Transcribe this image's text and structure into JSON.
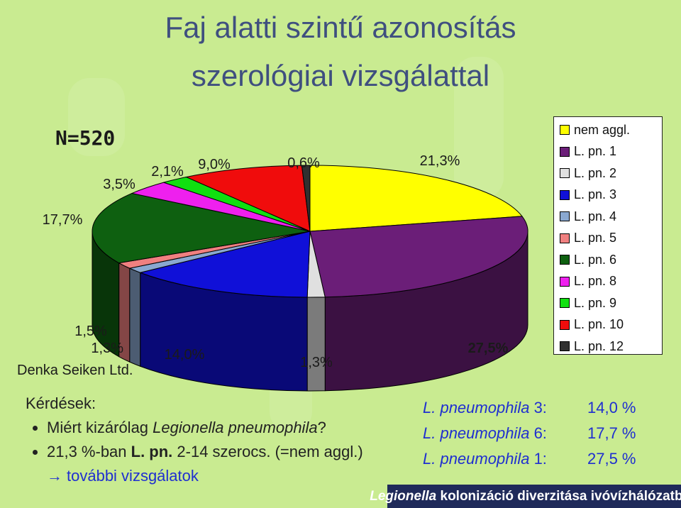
{
  "title_line1": "Faj alatti szintű azonosítás",
  "title_line2": "szerológiai vizsgálattal",
  "sample_size": "N=520",
  "chart_data": {
    "type": "pie",
    "title": "",
    "slices": [
      {
        "label": "nem aggl.",
        "value": 21.3,
        "value_label": "21,3%",
        "color": "#ffff00"
      },
      {
        "label": "L. pn. 1",
        "value": 27.5,
        "value_label": "27,5%",
        "color": "#6b1e78"
      },
      {
        "label": "L. pn. 2",
        "value": 1.3,
        "value_label": "1,3%",
        "color": "#e0e0e0"
      },
      {
        "label": "L. pn. 3",
        "value": 14.0,
        "value_label": "14,0%",
        "color": "#1010d8"
      },
      {
        "label": "L. pn. 4",
        "value": 1.3,
        "value_label": "1,3%",
        "color": "#8aa8d0"
      },
      {
        "label": "L. pn. 5",
        "value": 1.5,
        "value_label": "1,5%",
        "color": "#f08080"
      },
      {
        "label": "L. pn. 6",
        "value": 17.7,
        "value_label": "17,7%",
        "color": "#0e6010"
      },
      {
        "label": "L. pn. 8",
        "value": 3.5,
        "value_label": "3,5%",
        "color": "#ee20ee"
      },
      {
        "label": "L. pn. 9",
        "value": 2.1,
        "value_label": "2,1%",
        "color": "#10e010"
      },
      {
        "label": "L. pn. 10",
        "value": 9.0,
        "value_label": "9,0%",
        "color": "#f00c0c"
      },
      {
        "label": "L. pn. 12",
        "value": 0.6,
        "value_label": "0,6%",
        "color": "#303030"
      }
    ],
    "legend_position": "right",
    "annotation": "Denka Seiken Ltd."
  },
  "questions": {
    "title": "Kérdések:",
    "q1_prefix": "Miért kizárólag ",
    "q1_italic": "Legionella pneumophila",
    "q1_suffix": "?",
    "q2_prefix": "21,3 %-ban ",
    "q2_bold": "L. pn.",
    "q2_suffix": " 2-14 szerocs. (=nem aggl.)",
    "further_arrow": "→",
    "further": "további vizsgálatok"
  },
  "stats": [
    {
      "name_italic": "L. pneumophila",
      "name_suffix": " 3:",
      "value": "14,0 %"
    },
    {
      "name_italic": "L. pneumophila",
      "name_suffix": " 6:",
      "value": "17,7 %"
    },
    {
      "name_italic": "L. pneumophila",
      "name_suffix": " 1:",
      "value": "27,5 %"
    }
  ],
  "footer_italic": "Legionella",
  "footer_rest": " kolonizáció diverzitása ivóvízhálózatban"
}
